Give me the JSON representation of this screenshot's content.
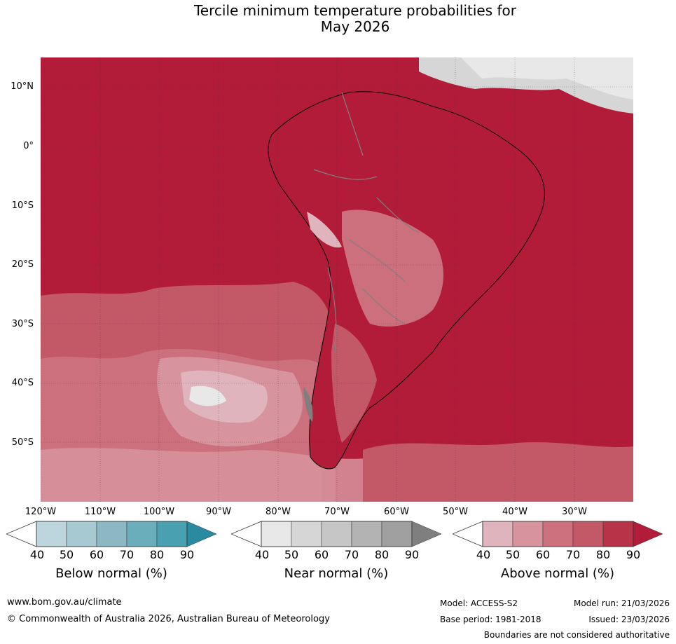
{
  "title": {
    "line1": "Tercile minimum temperature probabilities for",
    "line2": "May 2026"
  },
  "axes": {
    "lat_labels": [
      "10°N",
      "0°",
      "10°S",
      "20°S",
      "30°S",
      "40°S",
      "50°S"
    ],
    "lon_labels": [
      "120°W",
      "110°W",
      "100°W",
      "90°W",
      "80°W",
      "70°W",
      "60°W",
      "50°W",
      "40°W",
      "30°W"
    ]
  },
  "colorbars": {
    "below": {
      "label": "Below normal (%)",
      "ticks": [
        "40",
        "50",
        "60",
        "70",
        "80",
        "90"
      ],
      "colors": [
        "#bdd5dc",
        "#a7c9d1",
        "#8cb8c4",
        "#6aadbb",
        "#48a0b0",
        "#2a8aa0"
      ]
    },
    "near": {
      "label": "Near normal (%)",
      "ticks": [
        "40",
        "50",
        "60",
        "70",
        "80",
        "90"
      ],
      "colors": [
        "#e8e8e8",
        "#d6d6d6",
        "#c6c6c6",
        "#b3b3b3",
        "#9f9f9f",
        "#7f7f7f"
      ]
    },
    "above": {
      "label": "Above normal (%)",
      "ticks": [
        "40",
        "50",
        "60",
        "70",
        "80",
        "90"
      ],
      "colors": [
        "#e0b4bc",
        "#d7949e",
        "#cd707e",
        "#c35866",
        "#b93348",
        "#b21c38"
      ]
    }
  },
  "footer": {
    "website": "www.bom.gov.au/climate",
    "copyright": "© Commonwealth of Australia 2026, Australian Bureau of Meteorology",
    "model": "Model: ACCESS-S2",
    "base_period": "Base period: 1981-2018",
    "model_run": "Model run: 21/03/2026",
    "issued": "Issued: 23/03/2026",
    "boundaries": "Boundaries are not considered authoritative"
  }
}
